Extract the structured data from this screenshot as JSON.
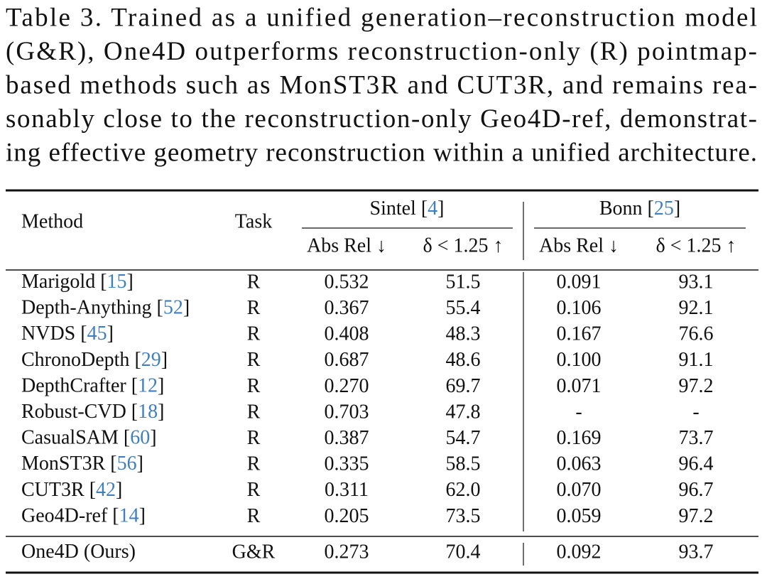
{
  "caption": {
    "lines": [
      "Table 3.  Trained as a unified generation–reconstruction model",
      "(G&R), One4D outperforms reconstruction-only (R) pointmap-",
      "based methods such as MonST3R and CUT3R, and remains rea-",
      "sonably close to the reconstruction-only Geo4D-ref, demonstrat-",
      "ing effective geometry reconstruction within a unified architecture."
    ]
  },
  "table": {
    "brackets": [
      "[",
      "]"
    ],
    "columns": {
      "method": "Method",
      "task": "Task",
      "datasets": [
        {
          "name": "Sintel",
          "ref": "4"
        },
        {
          "name": "Bonn",
          "ref": "25"
        }
      ],
      "metrics": [
        "Abs Rel ↓",
        "δ < 1.25 ↑"
      ]
    },
    "rows": [
      {
        "method": "Marigold",
        "ref": "15",
        "task": "R",
        "values": [
          "0.532",
          "51.5",
          "0.091",
          "93.1"
        ]
      },
      {
        "method": "Depth-Anything",
        "ref": "52",
        "task": "R",
        "values": [
          "0.367",
          "55.4",
          "0.106",
          "92.1"
        ]
      },
      {
        "method": "NVDS",
        "ref": "45",
        "task": "R",
        "values": [
          "0.408",
          "48.3",
          "0.167",
          "76.6"
        ]
      },
      {
        "method": "ChronoDepth",
        "ref": "29",
        "task": "R",
        "values": [
          "0.687",
          "48.6",
          "0.100",
          "91.1"
        ]
      },
      {
        "method": "DepthCrafter",
        "ref": "12",
        "task": "R",
        "values": [
          "0.270",
          "69.7",
          "0.071",
          "97.2"
        ]
      },
      {
        "method": "Robust-CVD",
        "ref": "18",
        "task": "R",
        "values": [
          "0.703",
          "47.8",
          "-",
          "-"
        ]
      },
      {
        "method": "CasualSAM",
        "ref": "60",
        "task": "R",
        "values": [
          "0.387",
          "54.7",
          "0.169",
          "73.7"
        ]
      },
      {
        "method": "MonST3R",
        "ref": "56",
        "task": "R",
        "values": [
          "0.335",
          "58.5",
          "0.063",
          "96.4"
        ]
      },
      {
        "method": "CUT3R",
        "ref": "42",
        "task": "R",
        "values": [
          "0.311",
          "62.0",
          "0.070",
          "96.7"
        ]
      },
      {
        "method": "Geo4D-ref",
        "ref": "14",
        "task": "R",
        "values": [
          "0.205",
          "73.5",
          "0.059",
          "97.2"
        ]
      },
      {
        "method": "One4D (Ours)",
        "task": "G&R",
        "values": [
          "0.273",
          "70.4",
          "0.092",
          "93.7"
        ]
      }
    ]
  }
}
